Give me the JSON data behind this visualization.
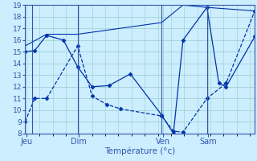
{
  "xlabel": "Température (°c)",
  "bg_color": "#cceeff",
  "line_color": "#0033aa",
  "grid_color": "#99cccc",
  "axis_color": "#3355aa",
  "ylim": [
    8,
    19
  ],
  "yticks": [
    8,
    9,
    10,
    11,
    12,
    13,
    14,
    15,
    16,
    17,
    18,
    19
  ],
  "day_labels": [
    "Jeu",
    "Dim",
    "Ven",
    "Sam"
  ],
  "day_positions": [
    0.5,
    22.5,
    57.5,
    76.5
  ],
  "day_vlines": [
    3,
    22,
    57,
    76
  ],
  "xlim": [
    0,
    96
  ],
  "series_low": {
    "x": [
      0,
      4,
      9,
      22,
      28,
      34,
      40,
      57,
      62,
      66,
      76,
      84,
      96
    ],
    "y": [
      9,
      11,
      11,
      15.5,
      11.2,
      10.5,
      10.1,
      9.5,
      8.2,
      8.1,
      11,
      12.3,
      18.5
    ]
  },
  "series_mid": {
    "x": [
      0,
      4,
      9,
      16,
      22,
      28,
      35,
      44,
      57,
      62,
      66,
      76,
      81,
      84,
      96
    ],
    "y": [
      15,
      15.1,
      16.4,
      16,
      13.7,
      12,
      12.1,
      13.1,
      9.6,
      8.0,
      16.0,
      18.8,
      12.3,
      12.0,
      16.3
    ]
  },
  "series_trend": {
    "x": [
      0,
      9,
      22,
      57,
      66,
      76,
      96
    ],
    "y": [
      15.5,
      16.5,
      16.5,
      17.5,
      19.0,
      18.8,
      18.5
    ]
  }
}
